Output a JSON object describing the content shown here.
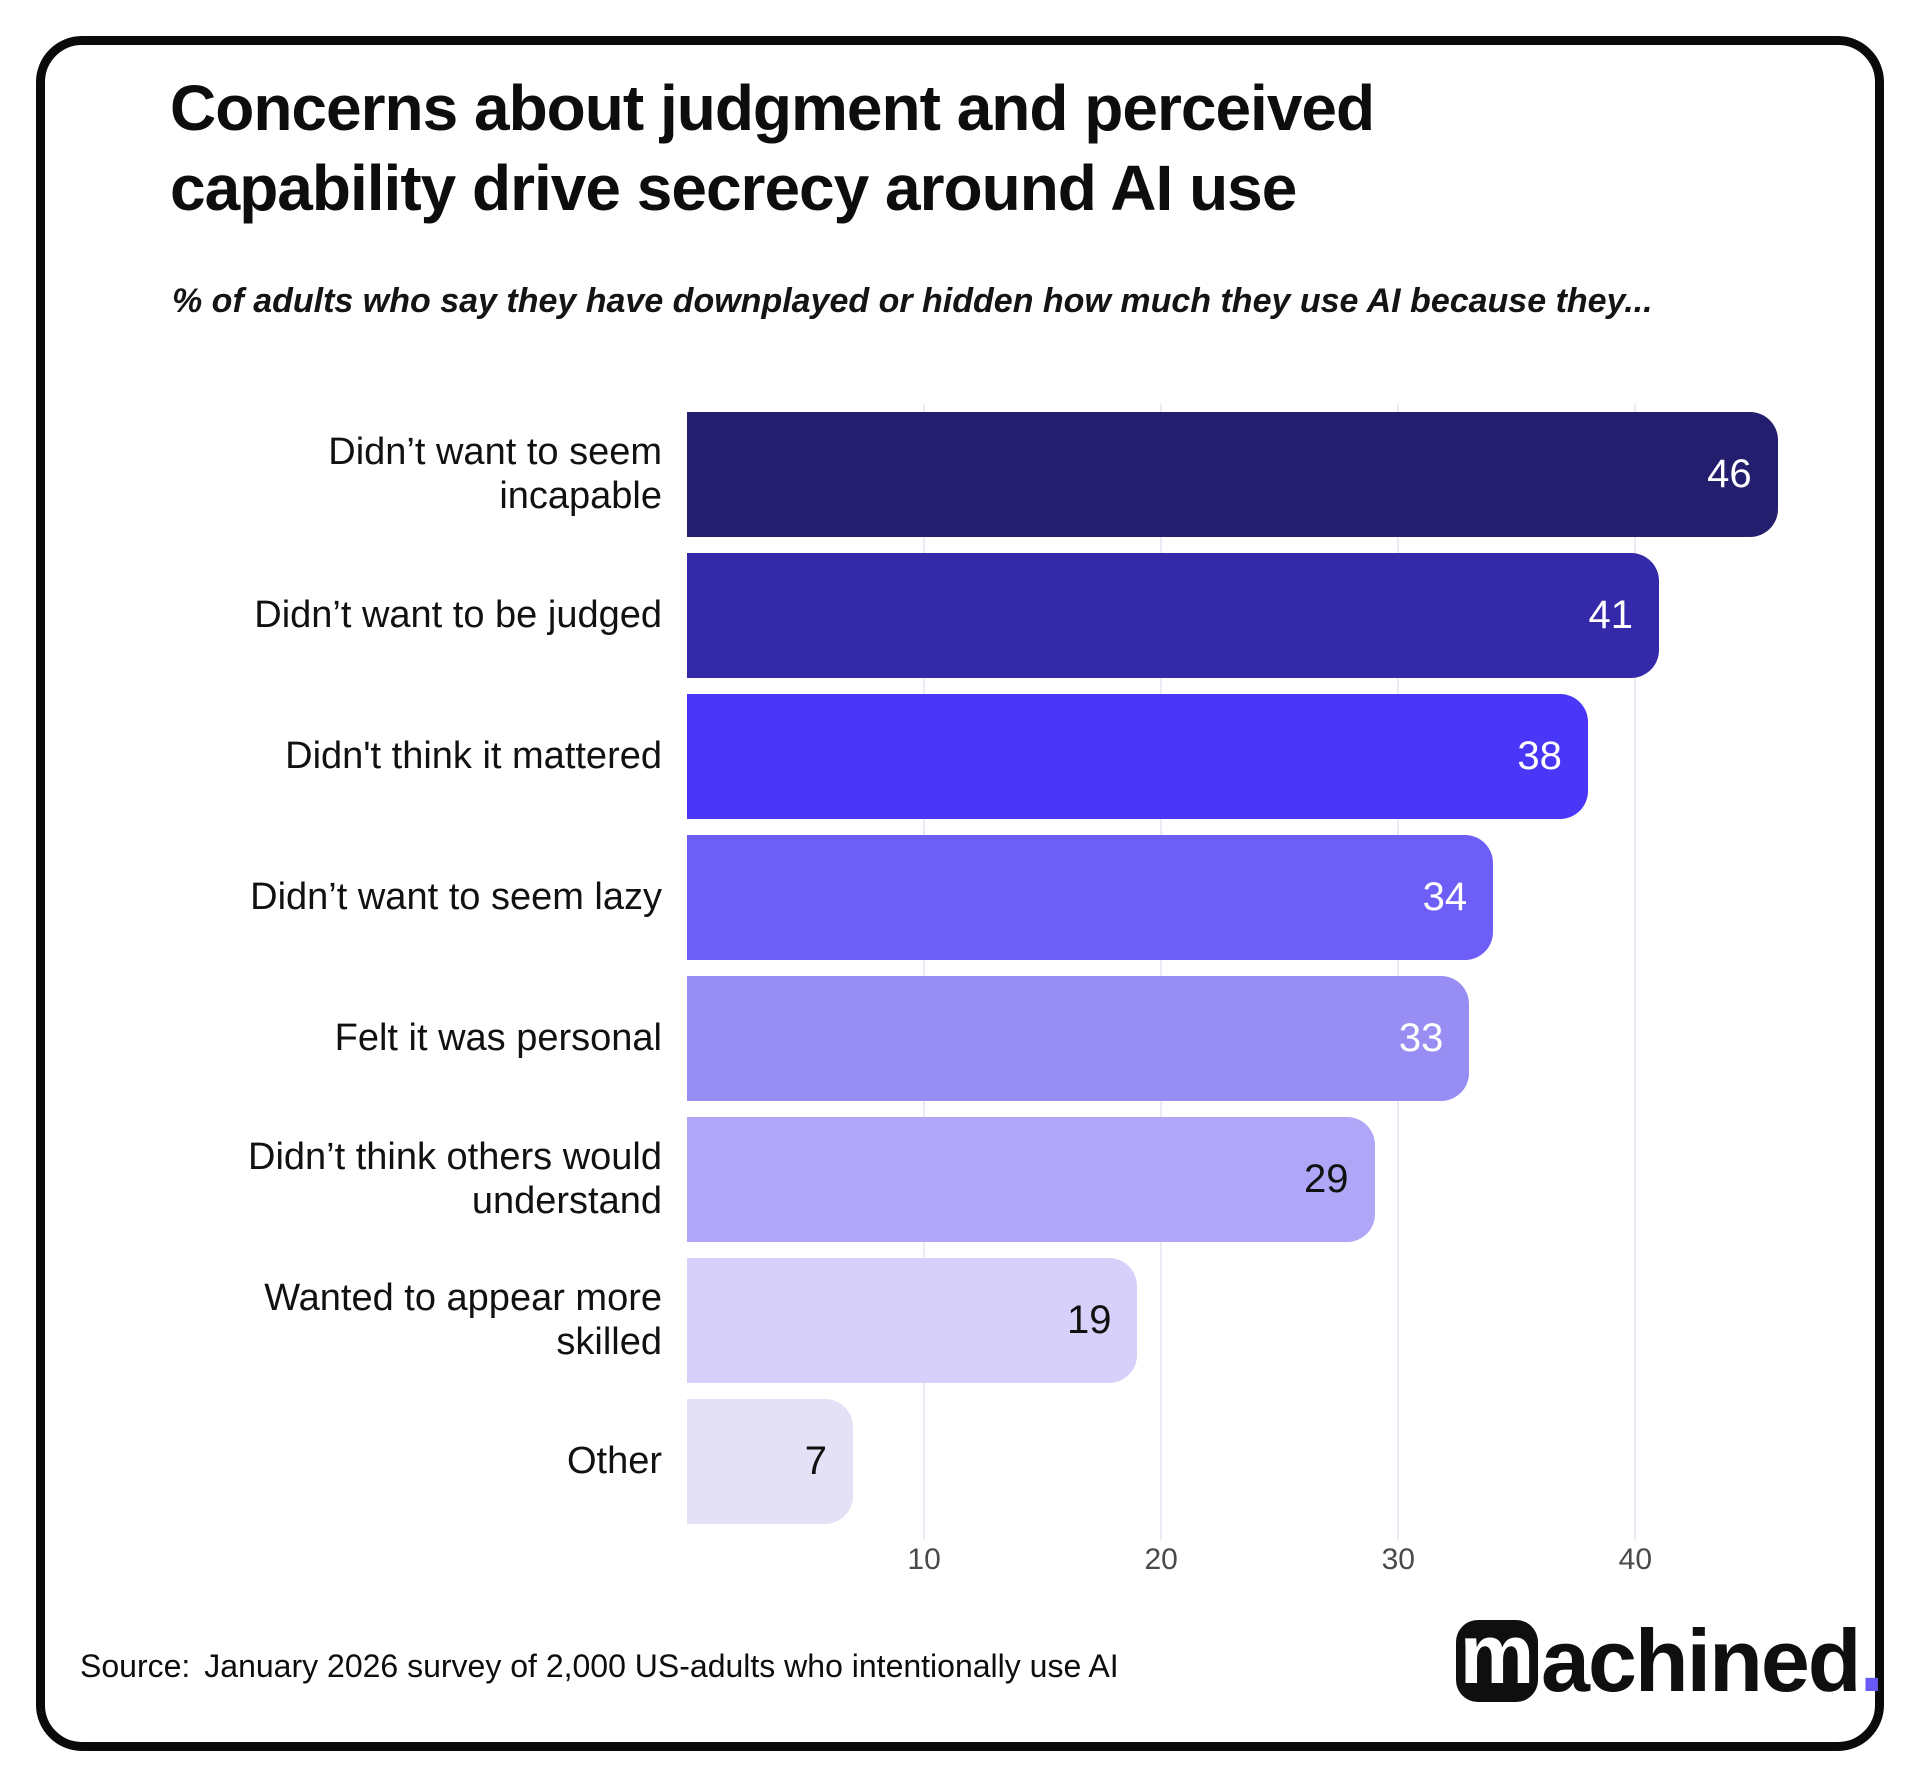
{
  "title": "Concerns about judgment and perceived capability drive secrecy around AI use",
  "subtitle": "% of adults who say they have downplayed or hidden how much they use AI because they...",
  "source": {
    "prefix": "Source:",
    "text": "January 2026 survey of 2,000 US-adults who intentionally use AI"
  },
  "logo": {
    "boxed_letter": "m",
    "rest": "achined",
    "dot": ".",
    "dot_color": "#6A5AF5"
  },
  "chart_data": {
    "type": "bar",
    "orientation": "horizontal",
    "categories": [
      "Didn’t want to seem incapable",
      "Didn’t want to be judged",
      "Didn't think it mattered",
      "Didn’t want to seem lazy",
      "Felt it was personal",
      "Didn’t think others would understand",
      "Wanted to appear more skilled",
      "Other"
    ],
    "values": [
      46,
      41,
      38,
      34,
      33,
      29,
      19,
      7
    ],
    "bar_colors": [
      "#241E6E",
      "#3429A8",
      "#4936F7",
      "#6D5EF8",
      "#978DF3",
      "#AFA6F8",
      "#D6D0FA",
      "#E4E1F6"
    ],
    "value_label_colors": [
      "#ffffff",
      "#ffffff",
      "#ffffff",
      "#ffffff",
      "#ffffff",
      "#111111",
      "#111111",
      "#111111"
    ],
    "xlabel": "",
    "ylabel": "",
    "xlim": [
      0,
      48
    ],
    "x_ticks": [
      10,
      20,
      30,
      40
    ],
    "grid": "vertical-light",
    "gridline_color": "#eceaf3",
    "legend": "none"
  }
}
